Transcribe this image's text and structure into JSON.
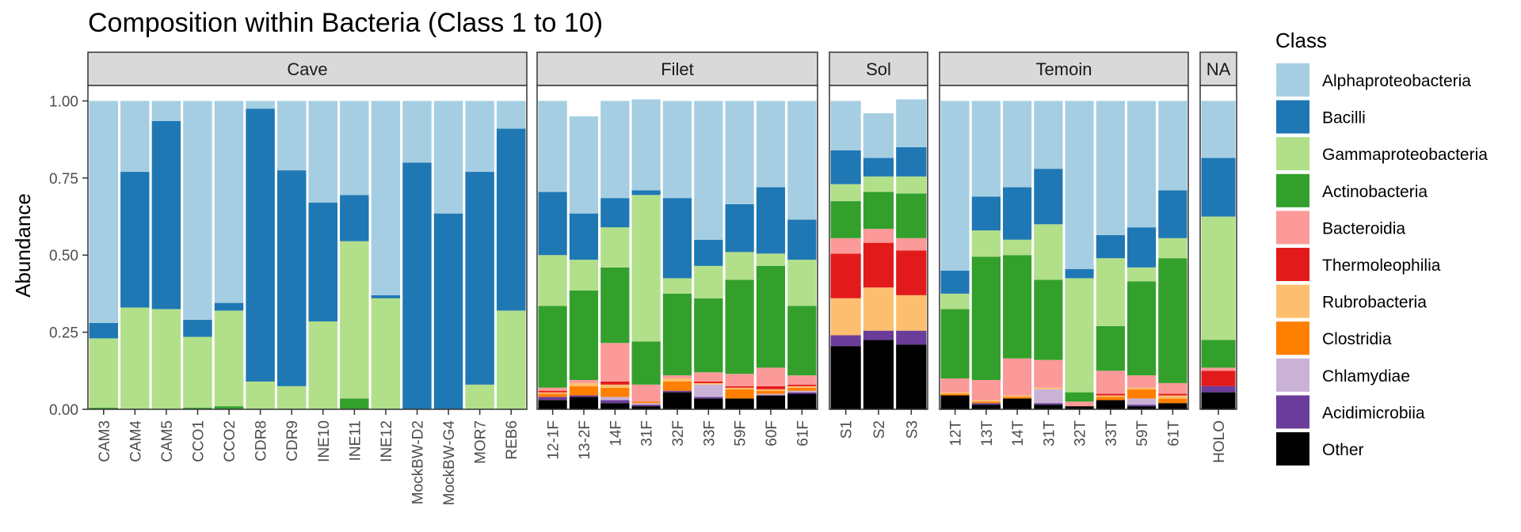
{
  "chart_data": {
    "type": "bar",
    "stacked": true,
    "title": "Composition within Bacteria (Class 1 to 10)",
    "ylabel": "Abundance",
    "xlabel": "",
    "ylim": [
      0,
      1.05
    ],
    "yticks": [
      "0.00",
      "0.25",
      "0.50",
      "0.75",
      "1.00"
    ],
    "ytick_values": [
      0,
      0.25,
      0.5,
      0.75,
      1.0
    ],
    "legend": {
      "title": "Class",
      "position": "right"
    },
    "classes": [
      "Alphaproteobacteria",
      "Bacilli",
      "Gammaproteobacteria",
      "Actinobacteria",
      "Bacteroidia",
      "Thermoleophilia",
      "Rubrobacteria",
      "Clostridia",
      "Chlamydiae",
      "Acidimicrobiia",
      "Other"
    ],
    "colors": [
      "#a6cee3",
      "#1f78b4",
      "#b2df8a",
      "#33a02c",
      "#fb9a99",
      "#e31a1c",
      "#fdbf6f",
      "#ff7f00",
      "#cab2d6",
      "#6a3d9a",
      "#000000"
    ],
    "facets": [
      {
        "label": "Cave",
        "samples": [
          {
            "name": "CAM3",
            "values": [
              0.72,
              0.05,
              0.225,
              0.005,
              0,
              0,
              0,
              0,
              0,
              0,
              0
            ]
          },
          {
            "name": "CAM4",
            "values": [
              0.23,
              0.44,
              0.33,
              0,
              0,
              0,
              0,
              0,
              0,
              0,
              0
            ]
          },
          {
            "name": "CAM5",
            "values": [
              0.065,
              0.61,
              0.325,
              0,
              0,
              0,
              0,
              0,
              0,
              0,
              0
            ]
          },
          {
            "name": "CCO1",
            "values": [
              0.71,
              0.055,
              0.23,
              0.005,
              0,
              0,
              0,
              0,
              0,
              0,
              0
            ]
          },
          {
            "name": "CCO2",
            "values": [
              0.655,
              0.025,
              0.31,
              0.01,
              0,
              0,
              0,
              0,
              0,
              0,
              0
            ]
          },
          {
            "name": "CDR8",
            "values": [
              0.025,
              0.885,
              0.09,
              0,
              0,
              0,
              0,
              0,
              0,
              0,
              0
            ]
          },
          {
            "name": "CDR9",
            "values": [
              0.225,
              0.7,
              0.075,
              0,
              0,
              0,
              0,
              0,
              0,
              0,
              0
            ]
          },
          {
            "name": "INE10",
            "values": [
              0.33,
              0.385,
              0.285,
              0,
              0,
              0,
              0,
              0,
              0,
              0,
              0
            ]
          },
          {
            "name": "INE11",
            "values": [
              0.305,
              0.15,
              0.51,
              0.035,
              0,
              0,
              0,
              0,
              0,
              0,
              0
            ]
          },
          {
            "name": "INE12",
            "values": [
              0.63,
              0.01,
              0.36,
              0,
              0,
              0,
              0,
              0,
              0,
              0,
              0
            ]
          },
          {
            "name": "MockBW-D2",
            "values": [
              0.2,
              0.8,
              0,
              0,
              0,
              0,
              0,
              0,
              0,
              0,
              0
            ]
          },
          {
            "name": "MockBW-G4",
            "values": [
              0.365,
              0.635,
              0,
              0,
              0,
              0,
              0,
              0,
              0,
              0,
              0
            ]
          },
          {
            "name": "MOR7",
            "values": [
              0.23,
              0.69,
              0.08,
              0,
              0,
              0,
              0,
              0,
              0,
              0,
              0
            ]
          },
          {
            "name": "REB6",
            "values": [
              0.09,
              0.59,
              0.32,
              0,
              0,
              0,
              0,
              0,
              0,
              0,
              0
            ]
          }
        ]
      },
      {
        "label": "Filet",
        "samples": [
          {
            "name": "12-1F",
            "values": [
              0.295,
              0.205,
              0.165,
              0.265,
              0.01,
              0.005,
              0.005,
              0.01,
              0,
              0.01,
              0.03
            ]
          },
          {
            "name": "13-2F",
            "values": [
              0.315,
              0.15,
              0.1,
              0.29,
              0.01,
              0,
              0.01,
              0.03,
              0,
              0.005,
              0.04
            ]
          },
          {
            "name": "14F",
            "values": [
              0.315,
              0.095,
              0.13,
              0.245,
              0.125,
              0.01,
              0.01,
              0.03,
              0.01,
              0.01,
              0.02
            ]
          },
          {
            "name": "31F",
            "values": [
              0.295,
              0.015,
              0.475,
              0.14,
              0.055,
              0,
              0,
              0.005,
              0.005,
              0.005,
              0.01
            ]
          },
          {
            "name": "32F",
            "values": [
              0.315,
              0.26,
              0.05,
              0.265,
              0.01,
              0,
              0.01,
              0.03,
              0,
              0.005,
              0.055
            ]
          },
          {
            "name": "33F",
            "values": [
              0.45,
              0.085,
              0.105,
              0.24,
              0.03,
              0.005,
              0.005,
              0,
              0.04,
              0.005,
              0.035
            ]
          },
          {
            "name": "59F",
            "values": [
              0.335,
              0.155,
              0.09,
              0.305,
              0.04,
              0.005,
              0.005,
              0.03,
              0,
              0,
              0.035
            ]
          },
          {
            "name": "60F",
            "values": [
              0.28,
              0.215,
              0.04,
              0.33,
              0.06,
              0.01,
              0.005,
              0.01,
              0.005,
              0,
              0.045
            ]
          },
          {
            "name": "61F",
            "values": [
              0.385,
              0.13,
              0.15,
              0.225,
              0.03,
              0.005,
              0.005,
              0.01,
              0.005,
              0.005,
              0.05
            ]
          }
        ]
      },
      {
        "label": "Sol",
        "samples": [
          {
            "name": "S1",
            "values": [
              0.16,
              0.11,
              0.055,
              0.12,
              0.05,
              0.145,
              0.12,
              0,
              0,
              0.035,
              0.205
            ]
          },
          {
            "name": "S2",
            "values": [
              0.145,
              0.06,
              0.05,
              0.12,
              0.045,
              0.145,
              0.14,
              0,
              0,
              0.03,
              0.225
            ]
          },
          {
            "name": "S3",
            "values": [
              0.155,
              0.095,
              0.055,
              0.145,
              0.04,
              0.145,
              0.115,
              0,
              0,
              0.045,
              0.21
            ]
          }
        ]
      },
      {
        "label": "Temoin",
        "samples": [
          {
            "name": "12T",
            "values": [
              0.55,
              0.075,
              0.05,
              0.225,
              0.045,
              0,
              0.005,
              0.005,
              0,
              0,
              0.045
            ]
          },
          {
            "name": "13T",
            "values": [
              0.31,
              0.11,
              0.085,
              0.4,
              0.065,
              0,
              0.005,
              0.005,
              0,
              0.005,
              0.015
            ]
          },
          {
            "name": "14T",
            "values": [
              0.28,
              0.17,
              0.05,
              0.335,
              0.12,
              0,
              0.005,
              0.005,
              0,
              0,
              0.035
            ]
          },
          {
            "name": "31T",
            "values": [
              0.22,
              0.18,
              0.18,
              0.26,
              0.09,
              0,
              0.005,
              0,
              0.045,
              0.005,
              0.015
            ]
          },
          {
            "name": "32T",
            "values": [
              0.545,
              0.03,
              0.37,
              0.03,
              0.015,
              0,
              0,
              0,
              0,
              0,
              0.01
            ]
          },
          {
            "name": "33T",
            "values": [
              0.435,
              0.075,
              0.22,
              0.145,
              0.075,
              0.005,
              0.005,
              0.01,
              0,
              0,
              0.03
            ]
          },
          {
            "name": "59T",
            "values": [
              0.41,
              0.13,
              0.045,
              0.305,
              0.04,
              0,
              0.005,
              0.03,
              0.02,
              0.005,
              0.01
            ]
          },
          {
            "name": "61T",
            "values": [
              0.29,
              0.155,
              0.065,
              0.405,
              0.035,
              0.005,
              0.01,
              0.015,
              0,
              0,
              0.02
            ]
          }
        ]
      },
      {
        "label": "NA",
        "samples": [
          {
            "name": "HOLO",
            "values": [
              0.185,
              0.19,
              0.4,
              0.09,
              0.01,
              0.05,
              0,
              0,
              0,
              0.02,
              0.055
            ]
          }
        ]
      }
    ]
  }
}
